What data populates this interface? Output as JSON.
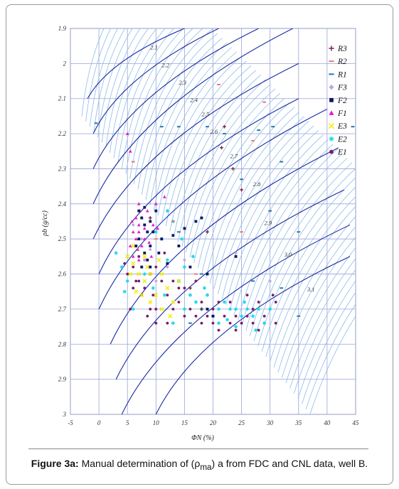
{
  "caption": {
    "label": "Figure 3a:",
    "text_before": " Manual determination of (ρ",
    "subscript": "ma",
    "text_after": ") a from FDC and CNL data, well B."
  },
  "chart_data": {
    "type": "scatter",
    "xlabel": "ΦN (%)",
    "ylabel": "ρb (g/cc)",
    "xlim": [
      -5,
      45
    ],
    "ylim": [
      1.9,
      3.0
    ],
    "y_inverted": true,
    "xticks": [
      -5,
      0,
      5,
      10,
      15,
      20,
      25,
      30,
      35,
      40,
      45
    ],
    "yticks": [
      1.9,
      2.0,
      2.1,
      2.2,
      2.3,
      2.4,
      2.5,
      2.6,
      2.7,
      2.8,
      2.9,
      3.0
    ],
    "xtick_labels": [
      "-5",
      "0",
      "5",
      "10",
      "15",
      "20",
      "25",
      "30",
      "35",
      "40",
      "45"
    ],
    "ytick_labels": [
      "1.9",
      "2",
      "2.1",
      "2.2",
      "2.3",
      "2.4",
      "2.5",
      "2.6",
      "2.7",
      "2.8",
      "2.9",
      "3"
    ],
    "grid": true,
    "legend_position": "top-right",
    "matrix_density_curves": [
      {
        "label": "2.1",
        "points": [
          [
            -2,
            2.1
          ],
          [
            15,
            1.9
          ]
        ]
      },
      {
        "label": "2.2",
        "points": [
          [
            -1,
            2.2
          ],
          [
            21,
            1.9
          ]
        ]
      },
      {
        "label": "2.3",
        "points": [
          [
            -1,
            2.3
          ],
          [
            28,
            1.9
          ]
        ]
      },
      {
        "label": "2.4",
        "points": [
          [
            -1,
            2.4
          ],
          [
            34,
            1.9
          ]
        ]
      },
      {
        "label": "2.5",
        "points": [
          [
            -1,
            2.5
          ],
          [
            35,
            2.0
          ]
        ]
      },
      {
        "label": "2.6",
        "points": [
          [
            0,
            2.6
          ],
          [
            35,
            2.1
          ]
        ]
      },
      {
        "label": "2.7",
        "points": [
          [
            0,
            2.7
          ],
          [
            40,
            2.13
          ]
        ]
      },
      {
        "label": "2.8",
        "points": [
          [
            2,
            2.8
          ],
          [
            42,
            2.24
          ]
        ]
      },
      {
        "label": "2.9",
        "points": [
          [
            3,
            2.9
          ],
          [
            43,
            2.36
          ]
        ]
      },
      {
        "label": "3.0",
        "points": [
          [
            4,
            3.0
          ],
          [
            44,
            2.46
          ]
        ]
      },
      {
        "label": "3.1",
        "points": [
          [
            10,
            3.0
          ],
          [
            44,
            2.55
          ]
        ]
      }
    ],
    "curve_label_positions": [
      {
        "label": "2.1",
        "x": 9,
        "y": 1.96
      },
      {
        "label": "2.2",
        "x": 11,
        "y": 2.01
      },
      {
        "label": "2.3",
        "x": 14,
        "y": 2.06
      },
      {
        "label": "2.4",
        "x": 16,
        "y": 2.11
      },
      {
        "label": "2.5",
        "x": 18,
        "y": 2.15
      },
      {
        "label": "2.6",
        "x": 19.5,
        "y": 2.2
      },
      {
        "label": "2.7",
        "x": 23,
        "y": 2.27
      },
      {
        "label": "2.8",
        "x": 27,
        "y": 2.35
      },
      {
        "label": "2.9",
        "x": 29,
        "y": 2.46
      },
      {
        "label": "3.0",
        "x": 32.5,
        "y": 2.55
      },
      {
        "label": "3.1",
        "x": 36.5,
        "y": 2.65
      }
    ],
    "series": [
      {
        "name": "R3",
        "marker": "plus",
        "color": "#7b1f4c",
        "points": [
          [
            21.5,
            2.24
          ],
          [
            23.5,
            2.3
          ],
          [
            22,
            2.18
          ],
          [
            25,
            2.36
          ],
          [
            19,
            2.48
          ],
          [
            9,
            2.44
          ],
          [
            16,
            2.64
          ],
          [
            18,
            2.7
          ]
        ]
      },
      {
        "name": "R2",
        "marker": "dash",
        "color": "#e87878",
        "points": [
          [
            21,
            2.06
          ],
          [
            29,
            2.11
          ],
          [
            27,
            2.22
          ],
          [
            13,
            2.45
          ],
          [
            10,
            2.5
          ],
          [
            25,
            2.48
          ],
          [
            6,
            2.28
          ],
          [
            17,
            2.6
          ]
        ]
      },
      {
        "name": "R1",
        "marker": "dash",
        "color": "#2277aa",
        "points": [
          [
            -0.5,
            2.17
          ],
          [
            11,
            2.18
          ],
          [
            14,
            2.18
          ],
          [
            19,
            2.18
          ],
          [
            22,
            2.2
          ],
          [
            30.5,
            2.18
          ],
          [
            28,
            2.19
          ],
          [
            44.5,
            2.18
          ],
          [
            32,
            2.28
          ],
          [
            14,
            2.48
          ],
          [
            30,
            2.42
          ],
          [
            35,
            2.48
          ],
          [
            18,
            2.6
          ],
          [
            32,
            2.64
          ],
          [
            35,
            2.72
          ],
          [
            27,
            2.62
          ],
          [
            16,
            2.74
          ],
          [
            25,
            2.33
          ]
        ]
      },
      {
        "name": "F3",
        "marker": "diamond",
        "color": "#bba6e0",
        "points": [
          [
            6,
            2.46
          ],
          [
            7.5,
            2.5
          ],
          [
            9,
            2.53
          ],
          [
            12,
            2.58
          ],
          [
            10,
            2.62
          ],
          [
            8,
            2.56
          ],
          [
            24,
            2.54
          ],
          [
            30,
            2.62
          ],
          [
            15,
            2.56
          ]
        ]
      },
      {
        "name": "F2",
        "marker": "square",
        "color": "#0d1960",
        "points": [
          [
            7,
            2.42
          ],
          [
            7.5,
            2.44
          ],
          [
            8,
            2.41
          ],
          [
            8,
            2.46
          ],
          [
            8.5,
            2.48
          ],
          [
            7,
            2.5
          ],
          [
            9,
            2.52
          ],
          [
            8,
            2.54
          ],
          [
            10,
            2.42
          ],
          [
            9.5,
            2.48
          ],
          [
            8.5,
            2.56
          ],
          [
            6.5,
            2.52
          ],
          [
            9,
            2.58
          ],
          [
            11,
            2.5
          ],
          [
            15,
            2.47
          ],
          [
            17,
            2.45
          ],
          [
            18,
            2.44
          ],
          [
            14,
            2.52
          ],
          [
            19,
            2.6
          ],
          [
            12,
            2.57
          ],
          [
            20,
            2.72
          ],
          [
            24,
            2.55
          ],
          [
            19,
            2.7
          ],
          [
            9,
            2.45
          ],
          [
            10.5,
            2.54
          ],
          [
            7.5,
            2.58
          ],
          [
            13,
            2.49
          ],
          [
            16,
            2.58
          ]
        ]
      },
      {
        "name": "F1",
        "marker": "triangle",
        "color": "#e51cd0",
        "points": [
          [
            5,
            2.2
          ],
          [
            5.5,
            2.25
          ],
          [
            7,
            2.4
          ],
          [
            6.5,
            2.44
          ],
          [
            7,
            2.46
          ],
          [
            6,
            2.48
          ],
          [
            7.5,
            2.52
          ],
          [
            6.5,
            2.5
          ],
          [
            7.5,
            2.44
          ],
          [
            8.5,
            2.42
          ],
          [
            8,
            2.5
          ],
          [
            6,
            2.55
          ],
          [
            5.5,
            2.52
          ],
          [
            7,
            2.56
          ],
          [
            10,
            2.4
          ],
          [
            11.5,
            2.38
          ],
          [
            9.5,
            2.46
          ],
          [
            7,
            2.48
          ],
          [
            8,
            2.47
          ],
          [
            6.8,
            2.53
          ],
          [
            5.8,
            2.45
          ],
          [
            8.8,
            2.51
          ],
          [
            7.2,
            2.42
          ],
          [
            9.2,
            2.55
          ],
          [
            10.3,
            2.47
          ]
        ]
      },
      {
        "name": "E3",
        "marker": "cross",
        "color": "#f0f000",
        "points": [
          [
            5,
            2.55
          ],
          [
            6,
            2.57
          ],
          [
            7,
            2.6
          ],
          [
            8,
            2.62
          ],
          [
            6.5,
            2.65
          ],
          [
            9,
            2.6
          ],
          [
            10,
            2.66
          ],
          [
            11,
            2.7
          ],
          [
            9,
            2.68
          ],
          [
            12,
            2.64
          ],
          [
            13,
            2.68
          ],
          [
            8.5,
            2.58
          ],
          [
            5.5,
            2.6
          ],
          [
            7.5,
            2.66
          ],
          [
            12.5,
            2.72
          ],
          [
            14,
            2.62
          ],
          [
            10.5,
            2.56
          ],
          [
            6,
            2.52
          ],
          [
            8,
            2.55
          ],
          [
            11,
            2.6
          ]
        ]
      },
      {
        "name": "E2",
        "marker": "asterisk",
        "color": "#22d8f0",
        "points": [
          [
            3,
            2.54
          ],
          [
            4,
            2.58
          ],
          [
            5,
            2.62
          ],
          [
            10,
            2.48
          ],
          [
            11,
            2.5
          ],
          [
            12,
            2.56
          ],
          [
            14,
            2.62
          ],
          [
            15,
            2.58
          ],
          [
            16,
            2.66
          ],
          [
            17,
            2.68
          ],
          [
            18,
            2.7
          ],
          [
            19,
            2.66
          ],
          [
            20,
            2.72
          ],
          [
            21,
            2.7
          ],
          [
            22,
            2.68
          ],
          [
            23,
            2.7
          ],
          [
            24,
            2.7
          ],
          [
            25,
            2.72
          ],
          [
            26,
            2.7
          ],
          [
            27,
            2.72
          ],
          [
            28,
            2.7
          ],
          [
            29,
            2.74
          ],
          [
            30,
            2.7
          ],
          [
            27.5,
            2.76
          ],
          [
            25.5,
            2.68
          ],
          [
            24,
            2.75
          ],
          [
            22.5,
            2.73
          ],
          [
            13,
            2.45
          ],
          [
            14.5,
            2.5
          ],
          [
            16.5,
            2.55
          ],
          [
            12,
            2.42
          ],
          [
            18.5,
            2.64
          ],
          [
            21,
            2.74
          ],
          [
            15,
            2.7
          ],
          [
            13,
            2.74
          ],
          [
            11.5,
            2.66
          ],
          [
            9.5,
            2.64
          ],
          [
            8,
            2.6
          ],
          [
            4.5,
            2.65
          ],
          [
            6,
            2.7
          ]
        ]
      },
      {
        "name": "E1",
        "marker": "circle",
        "color": "#7a1a6a",
        "points": [
          [
            5,
            2.6
          ],
          [
            6,
            2.58
          ],
          [
            7,
            2.62
          ],
          [
            8,
            2.56
          ],
          [
            8,
            2.64
          ],
          [
            9,
            2.6
          ],
          [
            10,
            2.58
          ],
          [
            10,
            2.7
          ],
          [
            11,
            2.62
          ],
          [
            12,
            2.66
          ],
          [
            13,
            2.7
          ],
          [
            14,
            2.68
          ],
          [
            15,
            2.72
          ],
          [
            16,
            2.7
          ],
          [
            17,
            2.72
          ],
          [
            18,
            2.74
          ],
          [
            19,
            2.72
          ],
          [
            20,
            2.74
          ],
          [
            21,
            2.76
          ],
          [
            22,
            2.72
          ],
          [
            23,
            2.74
          ],
          [
            24,
            2.72
          ],
          [
            25,
            2.74
          ],
          [
            26,
            2.72
          ],
          [
            27,
            2.74
          ],
          [
            28,
            2.76
          ],
          [
            29,
            2.72
          ],
          [
            30,
            2.7
          ],
          [
            31,
            2.68
          ],
          [
            30.5,
            2.66
          ],
          [
            31,
            2.74
          ],
          [
            6.5,
            2.62
          ],
          [
            7.5,
            2.66
          ],
          [
            9,
            2.7
          ],
          [
            5.5,
            2.7
          ],
          [
            7,
            2.55
          ],
          [
            4.5,
            2.57
          ],
          [
            11.5,
            2.54
          ],
          [
            13,
            2.62
          ],
          [
            15,
            2.64
          ],
          [
            17,
            2.62
          ],
          [
            19,
            2.66
          ],
          [
            21,
            2.68
          ],
          [
            23,
            2.68
          ],
          [
            26,
            2.66
          ],
          [
            28,
            2.68
          ],
          [
            29,
            2.74
          ],
          [
            8.5,
            2.72
          ],
          [
            10,
            2.74
          ],
          [
            12,
            2.74
          ],
          [
            20,
            2.7
          ],
          [
            18,
            2.68
          ],
          [
            6,
            2.64
          ],
          [
            9.5,
            2.66
          ],
          [
            16,
            2.66
          ],
          [
            14,
            2.64
          ],
          [
            24,
            2.76
          ],
          [
            27,
            2.7
          ]
        ]
      }
    ]
  }
}
